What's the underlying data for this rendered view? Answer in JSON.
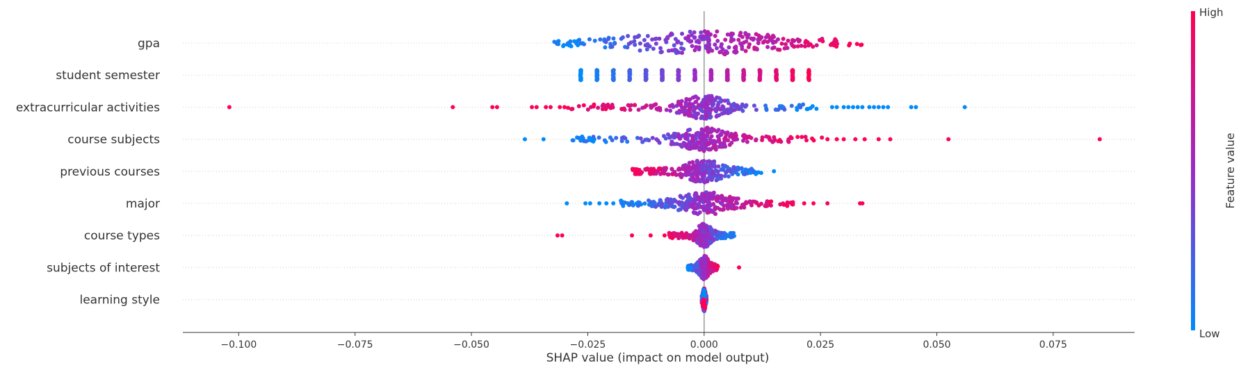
{
  "chart_data": {
    "type": "scatter",
    "title": "",
    "xlabel": "SHAP value (impact on model output)",
    "xlim": [
      -0.112,
      0.0925
    ],
    "xticks": [
      -0.1,
      -0.075,
      -0.05,
      -0.025,
      0.0,
      0.025,
      0.05,
      0.075
    ],
    "xtick_labels": [
      "−0.100",
      "−0.075",
      "−0.050",
      "−0.025",
      "0.000",
      "0.025",
      "0.050",
      "0.075"
    ],
    "grid": "dotted horizontal guide per feature",
    "colorbar": {
      "label": "Feature value",
      "high_label": "High",
      "low_label": "Low",
      "low_color": "#008bfb",
      "mid_color": "#9a2bc6",
      "high_color": "#ff0052"
    },
    "features": [
      {
        "name": "gpa",
        "min": -0.033,
        "max": 0.034,
        "trend": "positive",
        "spread": 0.012,
        "discrete": false,
        "extras": [],
        "spike": 0.001
      },
      {
        "name": "student semester",
        "trend": "positive",
        "discrete": true,
        "positions": [
          -0.0265,
          -0.023,
          -0.0195,
          -0.016,
          -0.0125,
          -0.009,
          -0.0055,
          -0.002,
          0.0015,
          0.005,
          0.0085,
          0.012,
          0.0155,
          0.019,
          0.0225
        ]
      },
      {
        "name": "extracurricular activities",
        "min": -0.03,
        "max": 0.025,
        "trend": "negative",
        "spread": 0.0035,
        "discrete": false,
        "extras": [
          -0.102,
          -0.054,
          -0.0455,
          -0.0445,
          -0.037,
          -0.036,
          -0.034,
          -0.033,
          -0.031,
          -0.03,
          0.0275,
          0.0285,
          0.03,
          0.031,
          0.032,
          0.033,
          0.034,
          0.0355,
          0.0365,
          0.0375,
          0.0385,
          0.0395,
          0.0445,
          0.0455,
          0.056
        ],
        "spike": 0.0005
      },
      {
        "name": "course subjects",
        "min": -0.0285,
        "max": 0.0255,
        "trend": "positive",
        "spread": 0.004,
        "discrete": false,
        "extras": [
          -0.0385,
          -0.0345,
          -0.0265,
          -0.0245,
          0.0265,
          0.0285,
          0.03,
          0.0325,
          0.0345,
          0.0375,
          0.04,
          0.0525,
          0.085
        ],
        "spike": -0.0005
      },
      {
        "name": "previous courses",
        "min": -0.0155,
        "max": 0.0125,
        "trend": "negative",
        "spread": 0.003,
        "discrete": false,
        "extras": [
          0.015
        ],
        "spike": -0.0015
      },
      {
        "name": "major",
        "min": -0.0185,
        "max": 0.0195,
        "trend": "positive",
        "spread": 0.004,
        "discrete": false,
        "extras": [
          -0.0295,
          -0.0255,
          -0.0245,
          -0.0225,
          -0.021,
          -0.0195,
          0.0215,
          0.0235,
          0.0265,
          0.0335,
          0.034
        ],
        "spike": 0.001
      },
      {
        "name": "course types",
        "min": -0.0075,
        "max": 0.0065,
        "trend": "negative",
        "spread": 0.0012,
        "discrete": false,
        "extras": [
          -0.0315,
          -0.0305,
          -0.0155,
          -0.0115,
          -0.0085
        ],
        "spike": 0.0005
      },
      {
        "name": "subjects of interest",
        "min": -0.0035,
        "max": 0.003,
        "trend": "positive",
        "spread": 0.0008,
        "discrete": false,
        "extras": [
          -0.0035,
          0.0075
        ],
        "spike": 0.0
      },
      {
        "name": "learning style",
        "min": -0.0005,
        "max": 0.0005,
        "trend": "mixed",
        "spread": 0.0002,
        "discrete": false,
        "extras": [],
        "spike": 0.0
      }
    ]
  }
}
